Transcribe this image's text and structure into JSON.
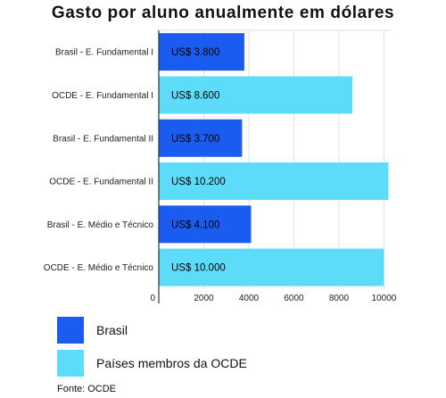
{
  "chart_data": {
    "type": "bar",
    "orientation": "horizontal",
    "title": "Gasto por aluno anualmente em dólares",
    "categories": [
      "Brasil - E. Fundamental I",
      "OCDE - E. Fundamental I",
      "Brasil - E. Fundamental II",
      "OCDE - E. Fundamental II",
      "Brasil - E. Médio e Técnico",
      "OCDE - E. Médio e Técnico"
    ],
    "values": [
      3800,
      8600,
      3700,
      10200,
      4100,
      10000
    ],
    "bar_labels": [
      "US$ 3.800",
      "US$ 8.600",
      "US$ 3.700",
      "US$ 10.200",
      "US$ 4.100",
      "US$ 10.000"
    ],
    "bar_series": [
      "Brasil",
      "Países membros da OCDE",
      "Brasil",
      "Países membros da OCDE",
      "Brasil",
      "Países membros da OCDE"
    ],
    "xlim": [
      0,
      10300
    ],
    "xticks": [
      0,
      2000,
      4000,
      6000,
      8000,
      10000
    ],
    "grid": true,
    "series": [
      {
        "name": "Brasil",
        "color": "#1a5cf0"
      },
      {
        "name": "Países membros da OCDE",
        "color": "#5ddcfa"
      }
    ],
    "legend_position": "bottom-left",
    "source": "Fonte: OCDE"
  }
}
